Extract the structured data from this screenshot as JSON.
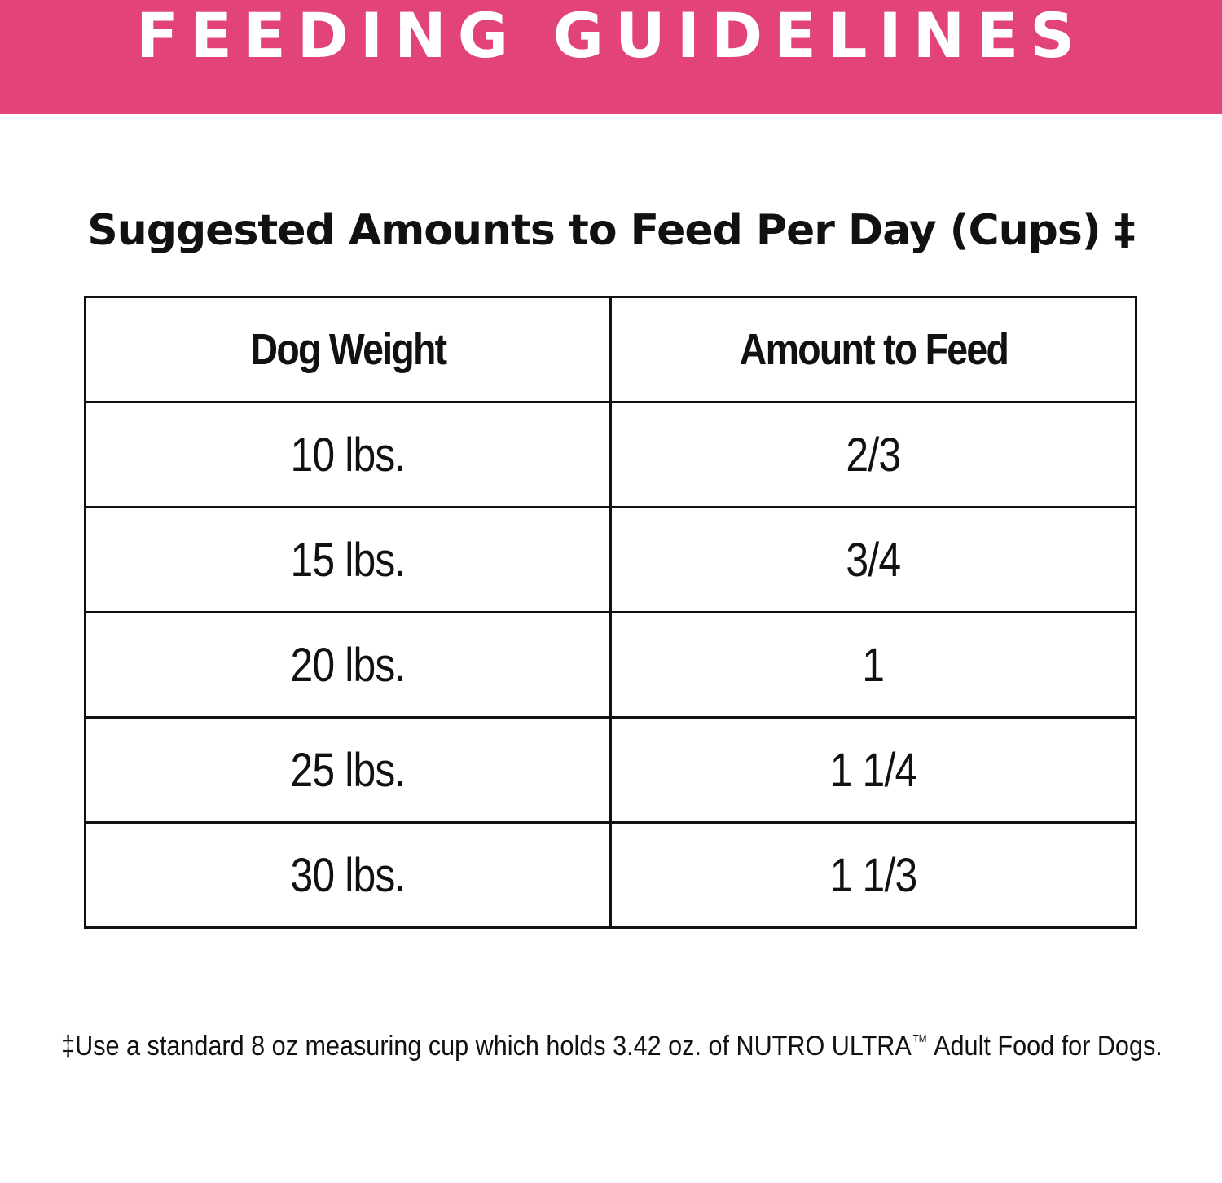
{
  "colors": {
    "banner": "#e2437a",
    "text": "#111111",
    "background": "#ffffff"
  },
  "banner": {
    "title": "FEEDING GUIDELINES"
  },
  "subtitle": "Suggested Amounts to Feed Per Day (Cups) ‡",
  "table": {
    "headers": [
      "Dog Weight",
      "Amount to Feed"
    ],
    "rows": [
      [
        "10 lbs.",
        "2/3"
      ],
      [
        "15 lbs.",
        "3/4"
      ],
      [
        "20 lbs.",
        "1"
      ],
      [
        "25 lbs.",
        "1 1/4"
      ],
      [
        "30 lbs.",
        "1 1/3"
      ]
    ]
  },
  "footnote": {
    "before": "‡Use a standard 8 oz measuring cup which holds 3.42 oz. of NUTRO ULTRA",
    "trademark": "TM",
    "after": " Adult Food for Dogs."
  }
}
